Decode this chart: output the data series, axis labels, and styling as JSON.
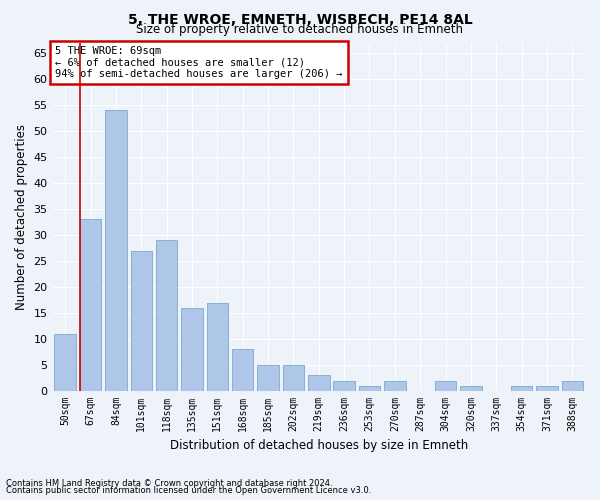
{
  "title1": "5, THE WROE, EMNETH, WISBECH, PE14 8AL",
  "title2": "Size of property relative to detached houses in Emneth",
  "xlabel": "Distribution of detached houses by size in Emneth",
  "ylabel": "Number of detached properties",
  "categories": [
    "50sqm",
    "67sqm",
    "84sqm",
    "101sqm",
    "118sqm",
    "135sqm",
    "151sqm",
    "168sqm",
    "185sqm",
    "202sqm",
    "219sqm",
    "236sqm",
    "253sqm",
    "270sqm",
    "287sqm",
    "304sqm",
    "320sqm",
    "337sqm",
    "354sqm",
    "371sqm",
    "388sqm"
  ],
  "values": [
    11,
    33,
    54,
    27,
    29,
    16,
    17,
    8,
    5,
    5,
    3,
    2,
    1,
    2,
    0,
    2,
    1,
    0,
    1,
    1,
    2
  ],
  "bar_color": "#aec6e8",
  "bar_edge_color": "#7aaad0",
  "annotation_text": "5 THE WROE: 69sqm\n← 6% of detached houses are smaller (12)\n94% of semi-detached houses are larger (206) →",
  "annotation_box_color": "#ffffff",
  "annotation_border_color": "#cc0000",
  "vline_x": 0.6,
  "ylim": [
    0,
    67
  ],
  "yticks": [
    0,
    5,
    10,
    15,
    20,
    25,
    30,
    35,
    40,
    45,
    50,
    55,
    60,
    65
  ],
  "footnote1": "Contains HM Land Registry data © Crown copyright and database right 2024.",
  "footnote2": "Contains public sector information licensed under the Open Government Licence v3.0.",
  "bg_color": "#eef2f9",
  "grid_color": "#ffffff"
}
